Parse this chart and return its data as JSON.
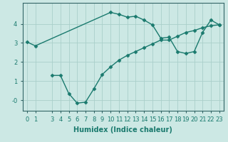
{
  "xlabel": "Humidex (Indice chaleur)",
  "bg_color": "#cce8e4",
  "line_color": "#1a7a6e",
  "grid_color": "#aacfca",
  "curve1_x": [
    0,
    1,
    10,
    11,
    12,
    13,
    14,
    15,
    16,
    17,
    18,
    19,
    20,
    21,
    22,
    23
  ],
  "curve1_y": [
    3.05,
    2.85,
    4.6,
    4.5,
    4.35,
    4.4,
    4.2,
    3.95,
    3.25,
    3.3,
    2.55,
    2.45,
    2.55,
    3.55,
    4.2,
    3.95
  ],
  "curve2_x": [
    3,
    4,
    5,
    6,
    7,
    8,
    9,
    10,
    11,
    12,
    13,
    14,
    15,
    16,
    17,
    18,
    19,
    20,
    21,
    22,
    23
  ],
  "curve2_y": [
    1.3,
    1.3,
    0.35,
    -0.15,
    -0.1,
    0.6,
    1.35,
    1.75,
    2.1,
    2.35,
    2.55,
    2.75,
    2.95,
    3.15,
    3.15,
    3.35,
    3.55,
    3.65,
    3.8,
    3.9,
    3.95
  ],
  "xlim": [
    -0.5,
    23.5
  ],
  "ylim": [
    -0.55,
    5.1
  ],
  "yticks": [
    0,
    1,
    2,
    3,
    4
  ],
  "ytick_labels": [
    "-0",
    "1",
    "2",
    "3",
    "4"
  ],
  "xticks": [
    0,
    1,
    3,
    4,
    5,
    6,
    7,
    8,
    9,
    10,
    11,
    12,
    13,
    14,
    15,
    16,
    17,
    18,
    19,
    20,
    21,
    22,
    23
  ],
  "marker": "D",
  "markersize": 2.5,
  "linewidth": 1.0,
  "label_fontsize": 7,
  "tick_fontsize": 6
}
